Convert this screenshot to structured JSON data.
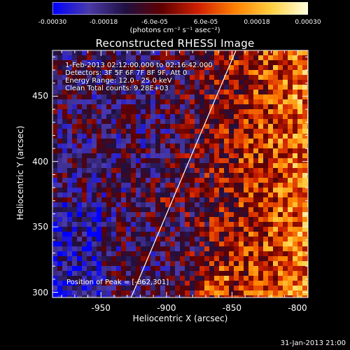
{
  "colorbar": {
    "ticks": [
      "-0.00030",
      "-0.00018",
      "-6.0e-05",
      "6.0e-05",
      "0.00018",
      "0.00030"
    ],
    "units": "(photons cm⁻² s⁻¹ asec⁻²)",
    "min": -0.0003,
    "max": 0.0003
  },
  "annotations": {
    "time_range": "1-Feb-2013 02:12:00.000 to 02:16:42.000",
    "detectors": "Detectors: 3F 5F 6F 7F 8F 9F, Att 0",
    "energy": "Energy Range: 12.0 - 25.0 keV",
    "clean": "Clean     Total counts: 9.28E+03",
    "peak": "Position of Peak = [-862,301]"
  },
  "footer_timestamp": "31-Jan-2013 21:00",
  "chart_data": {
    "type": "heatmap",
    "title": "Reconstructed RHESSI Image",
    "xlabel": "Heliocentric X (arcsec)",
    "ylabel": "Heliocentric Y (arcsec)",
    "xlim": [
      -987,
      -792
    ],
    "ylim": [
      296,
      485
    ],
    "x_ticks": [
      "-950",
      "-900",
      "-850",
      "-800"
    ],
    "x_tick_values": [
      -950,
      -900,
      -850,
      -800
    ],
    "y_ticks": [
      "300",
      "350",
      "400",
      "450"
    ],
    "y_tick_values": [
      300,
      350,
      400,
      450
    ],
    "limb_line": [
      [
        -927,
        296
      ],
      [
        -847,
        485
      ]
    ],
    "peak_position": [
      -862,
      301
    ],
    "colormap": [
      "#0000ff",
      "#4a3aa8",
      "#201040",
      "#600000",
      "#d02000",
      "#ff8000",
      "#ffd040",
      "#ffffe0"
    ],
    "grid": false
  }
}
